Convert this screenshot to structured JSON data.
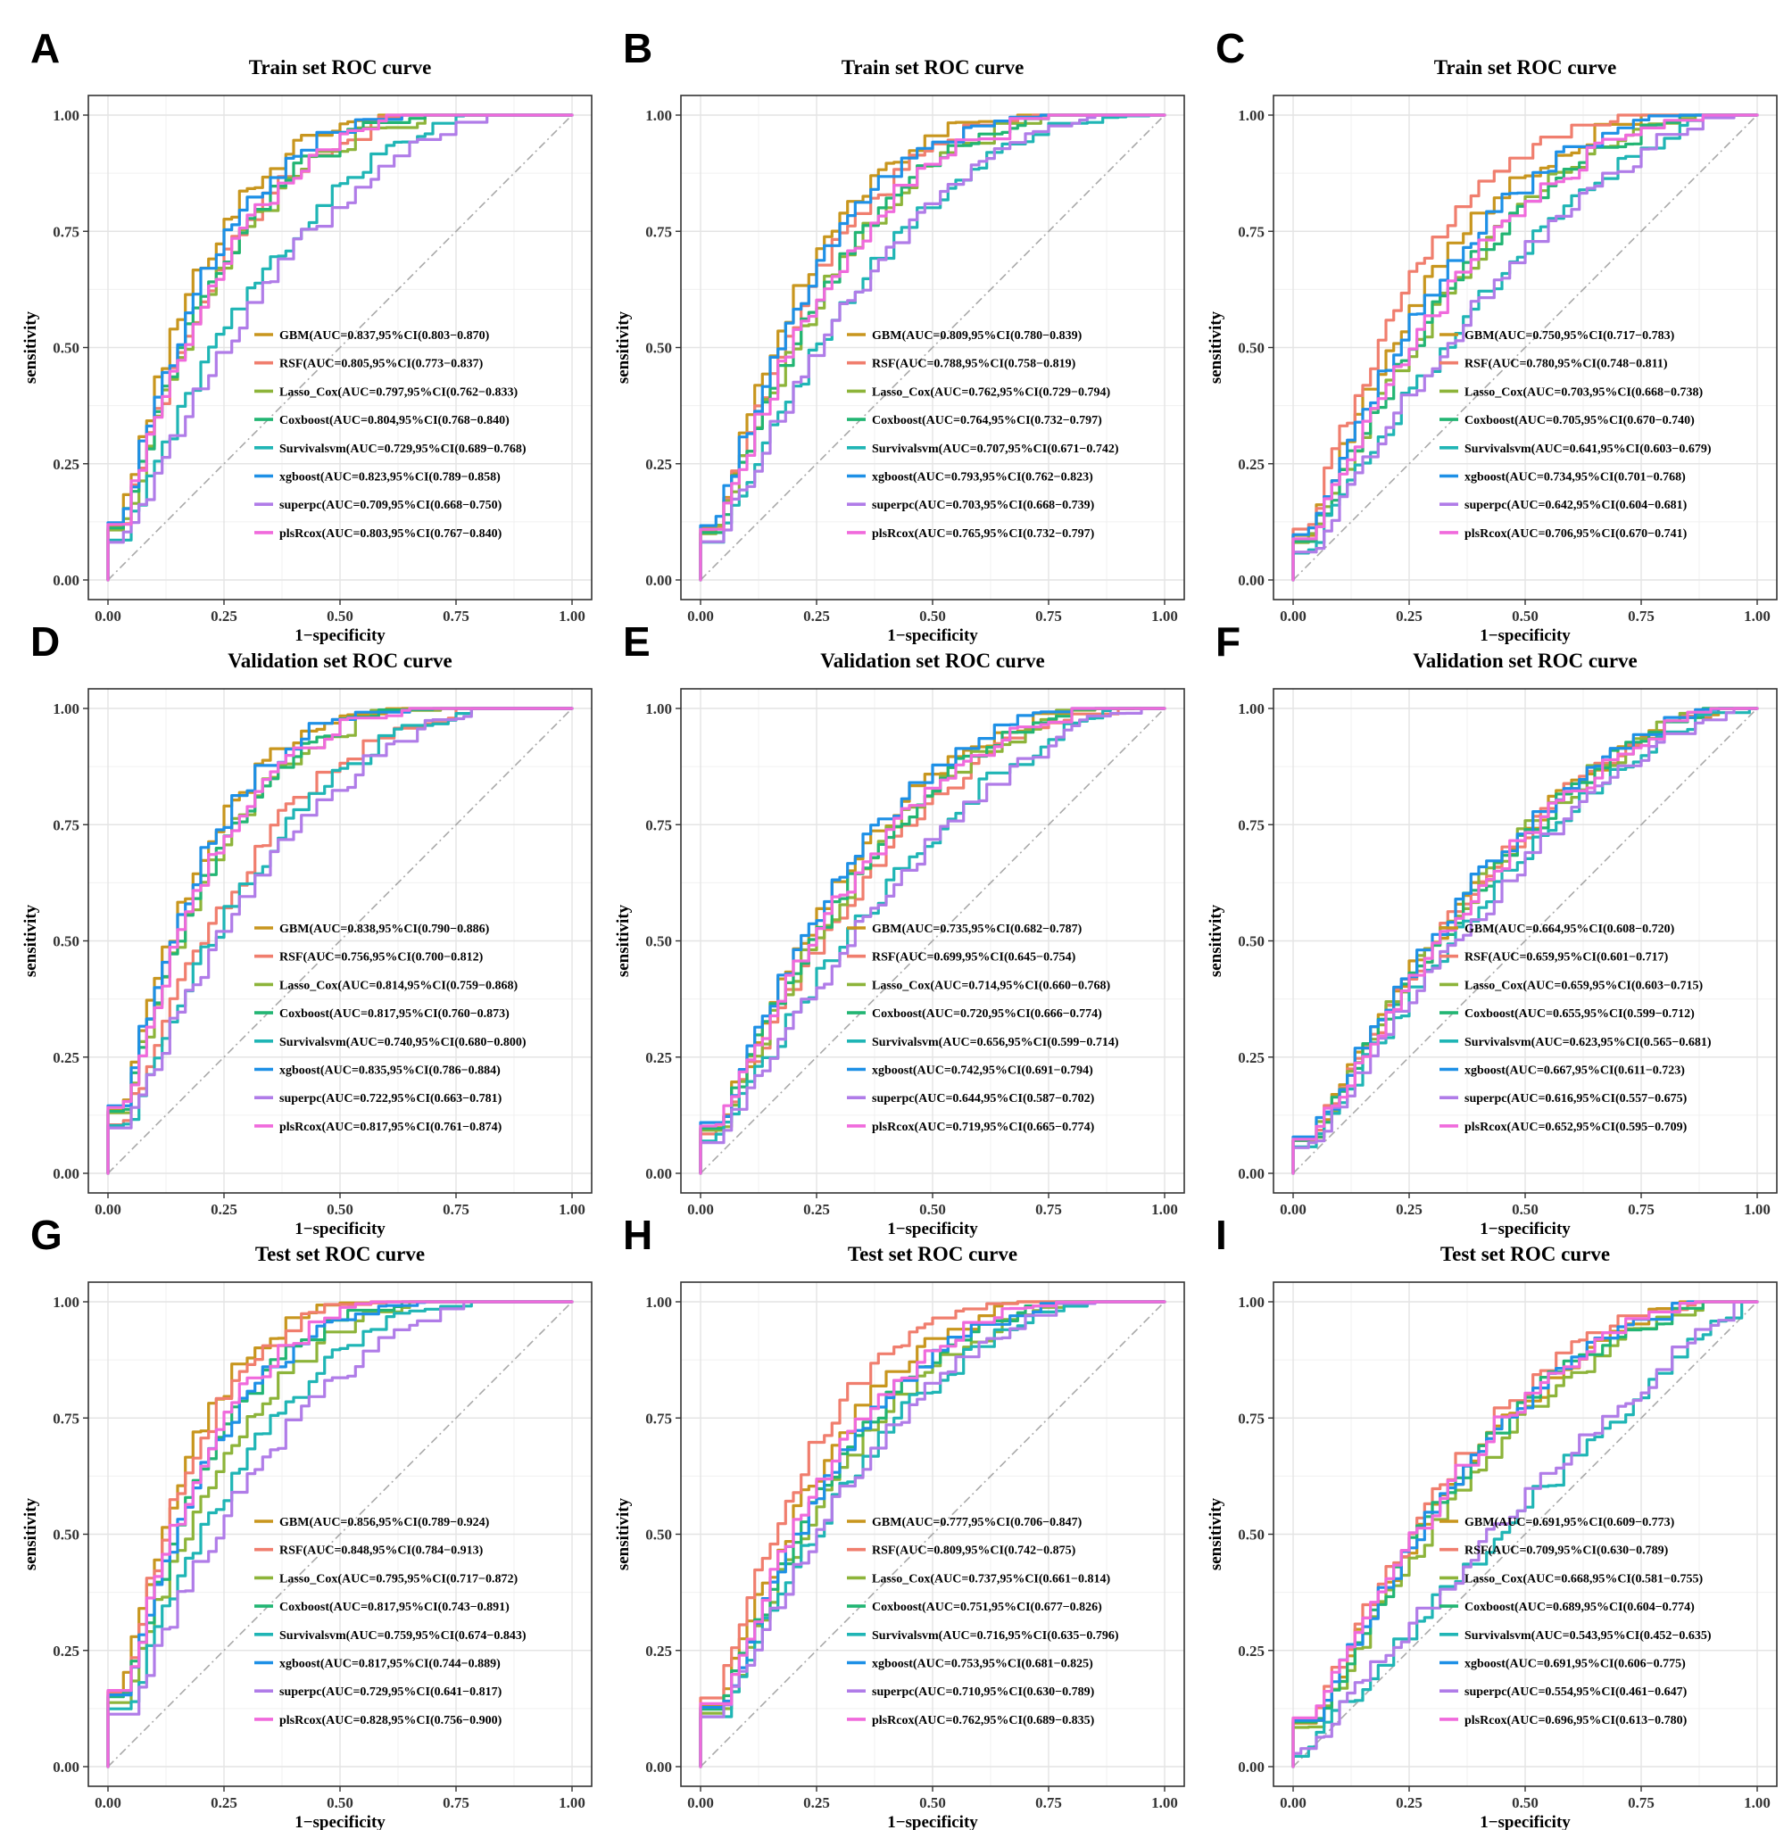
{
  "colors": {
    "GBM": "#C8961E",
    "RSF": "#F07E6E",
    "Lasso_Cox": "#8DB43A",
    "Coxboost": "#22B573",
    "Survivalsvm": "#1FB5B5",
    "xgboost": "#1E90E6",
    "superpc": "#B07CE8",
    "plsRcox": "#F06ADC",
    "diagonal": "#A9A9A9"
  },
  "chart_data": [
    {
      "letter": "A",
      "title": "Train set ROC curve",
      "type": "line",
      "xlabel": "1−specificity",
      "ylabel": "sensitivity",
      "xlim": [
        0,
        1
      ],
      "ylim": [
        0,
        1
      ],
      "xticks": [
        "0.00",
        "0.25",
        "0.50",
        "0.75",
        "1.00"
      ],
      "yticks": [
        "0.00",
        "0.25",
        "0.50",
        "0.75",
        "1.00"
      ],
      "legend_position": "bottom-right",
      "series": [
        {
          "name": "GBM",
          "auc": 0.837,
          "label": "GBM(AUC=0.837,95%CI(0.803−0.870)"
        },
        {
          "name": "RSF",
          "auc": 0.805,
          "label": "RSF(AUC=0.805,95%CI(0.773−0.837)"
        },
        {
          "name": "Lasso_Cox",
          "auc": 0.797,
          "label": "Lasso_Cox(AUC=0.797,95%CI(0.762−0.833)"
        },
        {
          "name": "Coxboost",
          "auc": 0.804,
          "label": "Coxboost(AUC=0.804,95%CI(0.768−0.840)"
        },
        {
          "name": "Survivalsvm",
          "auc": 0.729,
          "label": "Survivalsvm(AUC=0.729,95%CI(0.689−0.768)"
        },
        {
          "name": "xgboost",
          "auc": 0.823,
          "label": "xgboost(AUC=0.823,95%CI(0.789−0.858)"
        },
        {
          "name": "superpc",
          "auc": 0.709,
          "label": "superpc(AUC=0.709,95%CI(0.668−0.750)"
        },
        {
          "name": "plsRcox",
          "auc": 0.803,
          "label": "plsRcox(AUC=0.803,95%CI(0.767−0.840)"
        }
      ]
    },
    {
      "letter": "B",
      "title": "Train set ROC curve",
      "type": "line",
      "xlabel": "1−specificity",
      "ylabel": "sensitivity",
      "xlim": [
        0,
        1
      ],
      "ylim": [
        0,
        1
      ],
      "xticks": [
        "0.00",
        "0.25",
        "0.50",
        "0.75",
        "1.00"
      ],
      "yticks": [
        "0.00",
        "0.25",
        "0.50",
        "0.75",
        "1.00"
      ],
      "legend_position": "bottom-right",
      "series": [
        {
          "name": "GBM",
          "auc": 0.809,
          "label": "GBM(AUC=0.809,95%CI(0.780−0.839)"
        },
        {
          "name": "RSF",
          "auc": 0.788,
          "label": "RSF(AUC=0.788,95%CI(0.758−0.819)"
        },
        {
          "name": "Lasso_Cox",
          "auc": 0.762,
          "label": "Lasso_Cox(AUC=0.762,95%CI(0.729−0.794)"
        },
        {
          "name": "Coxboost",
          "auc": 0.764,
          "label": "Coxboost(AUC=0.764,95%CI(0.732−0.797)"
        },
        {
          "name": "Survivalsvm",
          "auc": 0.707,
          "label": "Survivalsvm(AUC=0.707,95%CI(0.671−0.742)"
        },
        {
          "name": "xgboost",
          "auc": 0.793,
          "label": "xgboost(AUC=0.793,95%CI(0.762−0.823)"
        },
        {
          "name": "superpc",
          "auc": 0.703,
          "label": "superpc(AUC=0.703,95%CI(0.668−0.739)"
        },
        {
          "name": "plsRcox",
          "auc": 0.765,
          "label": "plsRcox(AUC=0.765,95%CI(0.732−0.797)"
        }
      ]
    },
    {
      "letter": "C",
      "title": "Train set ROC curve",
      "type": "line",
      "xlabel": "1−specificity",
      "ylabel": "sensitivity",
      "xlim": [
        0,
        1
      ],
      "ylim": [
        0,
        1
      ],
      "xticks": [
        "0.00",
        "0.25",
        "0.50",
        "0.75",
        "1.00"
      ],
      "yticks": [
        "0.00",
        "0.25",
        "0.50",
        "0.75",
        "1.00"
      ],
      "legend_position": "bottom-right",
      "series": [
        {
          "name": "GBM",
          "auc": 0.75,
          "label": "GBM(AUC=0.750,95%CI(0.717−0.783)"
        },
        {
          "name": "RSF",
          "auc": 0.78,
          "label": "RSF(AUC=0.780,95%CI(0.748−0.811)"
        },
        {
          "name": "Lasso_Cox",
          "auc": 0.703,
          "label": "Lasso_Cox(AUC=0.703,95%CI(0.668−0.738)"
        },
        {
          "name": "Coxboost",
          "auc": 0.705,
          "label": "Coxboost(AUC=0.705,95%CI(0.670−0.740)"
        },
        {
          "name": "Survivalsvm",
          "auc": 0.641,
          "label": "Survivalsvm(AUC=0.641,95%CI(0.603−0.679)"
        },
        {
          "name": "xgboost",
          "auc": 0.734,
          "label": "xgboost(AUC=0.734,95%CI(0.701−0.768)"
        },
        {
          "name": "superpc",
          "auc": 0.642,
          "label": "superpc(AUC=0.642,95%CI(0.604−0.681)"
        },
        {
          "name": "plsRcox",
          "auc": 0.706,
          "label": "plsRcox(AUC=0.706,95%CI(0.670−0.741)"
        }
      ]
    },
    {
      "letter": "D",
      "title": "Validation set ROC curve",
      "type": "line",
      "xlabel": "1−specificity",
      "ylabel": "sensitivity",
      "xlim": [
        0,
        1
      ],
      "ylim": [
        0,
        1
      ],
      "xticks": [
        "0.00",
        "0.25",
        "0.50",
        "0.75",
        "1.00"
      ],
      "yticks": [
        "0.00",
        "0.25",
        "0.50",
        "0.75",
        "1.00"
      ],
      "legend_position": "bottom-right",
      "series": [
        {
          "name": "GBM",
          "auc": 0.838,
          "label": "GBM(AUC=0.838,95%CI(0.790−0.886)"
        },
        {
          "name": "RSF",
          "auc": 0.756,
          "label": "RSF(AUC=0.756,95%CI(0.700−0.812)"
        },
        {
          "name": "Lasso_Cox",
          "auc": 0.814,
          "label": "Lasso_Cox(AUC=0.814,95%CI(0.759−0.868)"
        },
        {
          "name": "Coxboost",
          "auc": 0.817,
          "label": "Coxboost(AUC=0.817,95%CI(0.760−0.873)"
        },
        {
          "name": "Survivalsvm",
          "auc": 0.74,
          "label": "Survivalsvm(AUC=0.740,95%CI(0.680−0.800)"
        },
        {
          "name": "xgboost",
          "auc": 0.835,
          "label": "xgboost(AUC=0.835,95%CI(0.786−0.884)"
        },
        {
          "name": "superpc",
          "auc": 0.722,
          "label": "superpc(AUC=0.722,95%CI(0.663−0.781)"
        },
        {
          "name": "plsRcox",
          "auc": 0.817,
          "label": "plsRcox(AUC=0.817,95%CI(0.761−0.874)"
        }
      ]
    },
    {
      "letter": "E",
      "title": "Validation set ROC curve",
      "type": "line",
      "xlabel": "1−specificity",
      "ylabel": "sensitivity",
      "xlim": [
        0,
        1
      ],
      "ylim": [
        0,
        1
      ],
      "xticks": [
        "0.00",
        "0.25",
        "0.50",
        "0.75",
        "1.00"
      ],
      "yticks": [
        "0.00",
        "0.25",
        "0.50",
        "0.75",
        "1.00"
      ],
      "legend_position": "bottom-right",
      "series": [
        {
          "name": "GBM",
          "auc": 0.735,
          "label": "GBM(AUC=0.735,95%CI(0.682−0.787)"
        },
        {
          "name": "RSF",
          "auc": 0.699,
          "label": "RSF(AUC=0.699,95%CI(0.645−0.754)"
        },
        {
          "name": "Lasso_Cox",
          "auc": 0.714,
          "label": "Lasso_Cox(AUC=0.714,95%CI(0.660−0.768)"
        },
        {
          "name": "Coxboost",
          "auc": 0.72,
          "label": "Coxboost(AUC=0.720,95%CI(0.666−0.774)"
        },
        {
          "name": "Survivalsvm",
          "auc": 0.656,
          "label": "Survivalsvm(AUC=0.656,95%CI(0.599−0.714)"
        },
        {
          "name": "xgboost",
          "auc": 0.742,
          "label": "xgboost(AUC=0.742,95%CI(0.691−0.794)"
        },
        {
          "name": "superpc",
          "auc": 0.644,
          "label": "superpc(AUC=0.644,95%CI(0.587−0.702)"
        },
        {
          "name": "plsRcox",
          "auc": 0.719,
          "label": "plsRcox(AUC=0.719,95%CI(0.665−0.774)"
        }
      ]
    },
    {
      "letter": "F",
      "title": "Validation set ROC curve",
      "type": "line",
      "xlabel": "1−specificity",
      "ylabel": "sensitivity",
      "xlim": [
        0,
        1
      ],
      "ylim": [
        0,
        1
      ],
      "xticks": [
        "0.00",
        "0.25",
        "0.50",
        "0.75",
        "1.00"
      ],
      "yticks": [
        "0.00",
        "0.25",
        "0.50",
        "0.75",
        "1.00"
      ],
      "legend_position": "bottom-right",
      "series": [
        {
          "name": "GBM",
          "auc": 0.664,
          "label": "GBM(AUC=0.664,95%CI(0.608−0.720)"
        },
        {
          "name": "RSF",
          "auc": 0.659,
          "label": "RSF(AUC=0.659,95%CI(0.601−0.717)"
        },
        {
          "name": "Lasso_Cox",
          "auc": 0.659,
          "label": "Lasso_Cox(AUC=0.659,95%CI(0.603−0.715)"
        },
        {
          "name": "Coxboost",
          "auc": 0.655,
          "label": "Coxboost(AUC=0.655,95%CI(0.599−0.712)"
        },
        {
          "name": "Survivalsvm",
          "auc": 0.623,
          "label": "Survivalsvm(AUC=0.623,95%CI(0.565−0.681)"
        },
        {
          "name": "xgboost",
          "auc": 0.667,
          "label": "xgboost(AUC=0.667,95%CI(0.611−0.723)"
        },
        {
          "name": "superpc",
          "auc": 0.616,
          "label": "superpc(AUC=0.616,95%CI(0.557−0.675)"
        },
        {
          "name": "plsRcox",
          "auc": 0.652,
          "label": "plsRcox(AUC=0.652,95%CI(0.595−0.709)"
        }
      ]
    },
    {
      "letter": "G",
      "title": "Test set ROC curve",
      "type": "line",
      "xlabel": "1−specificity",
      "ylabel": "sensitivity",
      "xlim": [
        0,
        1
      ],
      "ylim": [
        0,
        1
      ],
      "xticks": [
        "0.00",
        "0.25",
        "0.50",
        "0.75",
        "1.00"
      ],
      "yticks": [
        "0.00",
        "0.25",
        "0.50",
        "0.75",
        "1.00"
      ],
      "legend_position": "bottom-right",
      "series": [
        {
          "name": "GBM",
          "auc": 0.856,
          "label": "GBM(AUC=0.856,95%CI(0.789−0.924)"
        },
        {
          "name": "RSF",
          "auc": 0.848,
          "label": "RSF(AUC=0.848,95%CI(0.784−0.913)"
        },
        {
          "name": "Lasso_Cox",
          "auc": 0.795,
          "label": "Lasso_Cox(AUC=0.795,95%CI(0.717−0.872)"
        },
        {
          "name": "Coxboost",
          "auc": 0.817,
          "label": "Coxboost(AUC=0.817,95%CI(0.743−0.891)"
        },
        {
          "name": "Survivalsvm",
          "auc": 0.759,
          "label": "Survivalsvm(AUC=0.759,95%CI(0.674−0.843)"
        },
        {
          "name": "xgboost",
          "auc": 0.817,
          "label": "xgboost(AUC=0.817,95%CI(0.744−0.889)"
        },
        {
          "name": "superpc",
          "auc": 0.729,
          "label": "superpc(AUC=0.729,95%CI(0.641−0.817)"
        },
        {
          "name": "plsRcox",
          "auc": 0.828,
          "label": "plsRcox(AUC=0.828,95%CI(0.756−0.900)"
        }
      ]
    },
    {
      "letter": "H",
      "title": "Test set ROC curve",
      "type": "line",
      "xlabel": "1−specificity",
      "ylabel": "sensitivity",
      "xlim": [
        0,
        1
      ],
      "ylim": [
        0,
        1
      ],
      "xticks": [
        "0.00",
        "0.25",
        "0.50",
        "0.75",
        "1.00"
      ],
      "yticks": [
        "0.00",
        "0.25",
        "0.50",
        "0.75",
        "1.00"
      ],
      "legend_position": "bottom-right",
      "series": [
        {
          "name": "GBM",
          "auc": 0.777,
          "label": "GBM(AUC=0.777,95%CI(0.706−0.847)"
        },
        {
          "name": "RSF",
          "auc": 0.809,
          "label": "RSF(AUC=0.809,95%CI(0.742−0.875)"
        },
        {
          "name": "Lasso_Cox",
          "auc": 0.737,
          "label": "Lasso_Cox(AUC=0.737,95%CI(0.661−0.814)"
        },
        {
          "name": "Coxboost",
          "auc": 0.751,
          "label": "Coxboost(AUC=0.751,95%CI(0.677−0.826)"
        },
        {
          "name": "Survivalsvm",
          "auc": 0.716,
          "label": "Survivalsvm(AUC=0.716,95%CI(0.635−0.796)"
        },
        {
          "name": "xgboost",
          "auc": 0.753,
          "label": "xgboost(AUC=0.753,95%CI(0.681−0.825)"
        },
        {
          "name": "superpc",
          "auc": 0.71,
          "label": "superpc(AUC=0.710,95%CI(0.630−0.789)"
        },
        {
          "name": "plsRcox",
          "auc": 0.762,
          "label": "plsRcox(AUC=0.762,95%CI(0.689−0.835)"
        }
      ]
    },
    {
      "letter": "I",
      "title": "Test set ROC curve",
      "type": "line",
      "xlabel": "1−specificity",
      "ylabel": "sensitivity",
      "xlim": [
        0,
        1
      ],
      "ylim": [
        0,
        1
      ],
      "xticks": [
        "0.00",
        "0.25",
        "0.50",
        "0.75",
        "1.00"
      ],
      "yticks": [
        "0.00",
        "0.25",
        "0.50",
        "0.75",
        "1.00"
      ],
      "legend_position": "bottom-right",
      "series": [
        {
          "name": "GBM",
          "auc": 0.691,
          "label": "GBM(AUC=0.691,95%CI(0.609−0.773)"
        },
        {
          "name": "RSF",
          "auc": 0.709,
          "label": "RSF(AUC=0.709,95%CI(0.630−0.789)"
        },
        {
          "name": "Lasso_Cox",
          "auc": 0.668,
          "label": "Lasso_Cox(AUC=0.668,95%CI(0.581−0.755)"
        },
        {
          "name": "Coxboost",
          "auc": 0.689,
          "label": "Coxboost(AUC=0.689,95%CI(0.604−0.774)"
        },
        {
          "name": "Survivalsvm",
          "auc": 0.543,
          "label": "Survivalsvm(AUC=0.543,95%CI(0.452−0.635)"
        },
        {
          "name": "xgboost",
          "auc": 0.691,
          "label": "xgboost(AUC=0.691,95%CI(0.606−0.775)"
        },
        {
          "name": "superpc",
          "auc": 0.554,
          "label": "superpc(AUC=0.554,95%CI(0.461−0.647)"
        },
        {
          "name": "plsRcox",
          "auc": 0.696,
          "label": "plsRcox(AUC=0.696,95%CI(0.613−0.780)"
        }
      ]
    }
  ]
}
